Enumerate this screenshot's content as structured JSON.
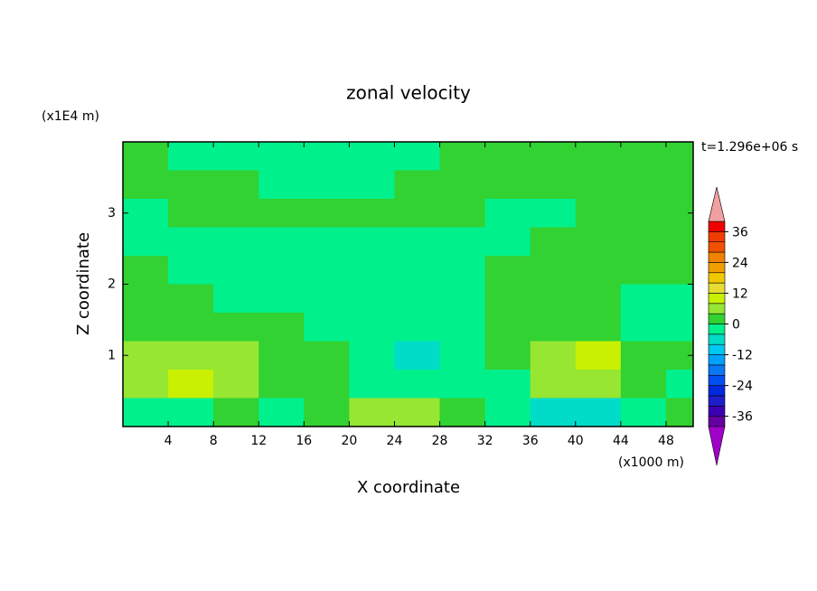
{
  "chart_data": {
    "type": "contour",
    "title": "zonal velocity",
    "x_label": "X coordinate",
    "y_label": "Z coordinate",
    "x_unit": "(x1000 m)",
    "y_unit": "(x1E4 m)",
    "time_label": "t=1.296e+06 s",
    "xlim": [
      0,
      50.4
    ],
    "ylim": [
      0,
      4
    ],
    "xticks": [
      4,
      8,
      12,
      16,
      20,
      24,
      28,
      32,
      36,
      40,
      44,
      48
    ],
    "yticks": [
      1,
      2,
      3
    ],
    "x": [
      2,
      6,
      10,
      14,
      18,
      22,
      26,
      30,
      34,
      38,
      42,
      46,
      50
    ],
    "y": [
      3.8,
      3.4,
      3.0,
      2.6,
      2.2,
      1.8,
      1.4,
      1.0,
      0.6,
      0.2
    ],
    "z": [
      [
        1,
        -1,
        -1,
        -1,
        -1,
        -1,
        -1,
        1,
        1,
        1,
        1,
        1,
        1
      ],
      [
        1,
        1,
        1,
        -1,
        -1,
        -1,
        1,
        1,
        1,
        1,
        1,
        1,
        1
      ],
      [
        -1,
        1,
        1,
        1,
        1,
        1,
        1,
        1,
        -1,
        -1,
        1,
        1,
        1
      ],
      [
        -1,
        -1,
        -1,
        -1,
        -1,
        -1,
        -1,
        -1,
        -1,
        1,
        1,
        1,
        1
      ],
      [
        1,
        -1,
        -1,
        -1,
        -1,
        -1,
        -1,
        -1,
        1,
        1,
        1,
        1,
        1
      ],
      [
        1,
        1,
        -1,
        -1,
        -1,
        -1,
        -1,
        -1,
        1,
        1,
        1,
        -1,
        -1
      ],
      [
        1,
        1,
        1,
        1,
        -1,
        -1,
        -3,
        -2,
        1,
        1,
        1,
        -1,
        -1
      ],
      [
        5,
        6,
        5,
        2,
        1,
        -2,
        -8,
        -4,
        1,
        6,
        9,
        3,
        1
      ],
      [
        6,
        10,
        7,
        2,
        1,
        -3,
        -4,
        -2,
        -1,
        5,
        6,
        2,
        -2
      ],
      [
        -3,
        -1,
        1,
        -2,
        1,
        5,
        6,
        3,
        -2,
        -5,
        -6,
        -2,
        1
      ]
    ],
    "colorbar": {
      "levels": [
        -40,
        -36,
        -32,
        -28,
        -24,
        -20,
        -16,
        -12,
        -8,
        -4,
        0,
        4,
        8,
        12,
        16,
        20,
        24,
        28,
        32,
        36,
        40
      ],
      "colors": [
        "#6400a0",
        "#3c00b4",
        "#1e1ec8",
        "#0028dc",
        "#0050f0",
        "#0a78f5",
        "#00a0ff",
        "#00c8f0",
        "#00dcc8",
        "#00f08c",
        "#32d232",
        "#96e632",
        "#c8f000",
        "#e6dc32",
        "#f0c800",
        "#f0a000",
        "#f08200",
        "#f05000",
        "#f03c00",
        "#f00000"
      ],
      "under_color": "#a000c8",
      "over_color": "#f0a0a0",
      "ticks": [
        36,
        24,
        12,
        0,
        -12,
        -24,
        -36
      ]
    }
  }
}
